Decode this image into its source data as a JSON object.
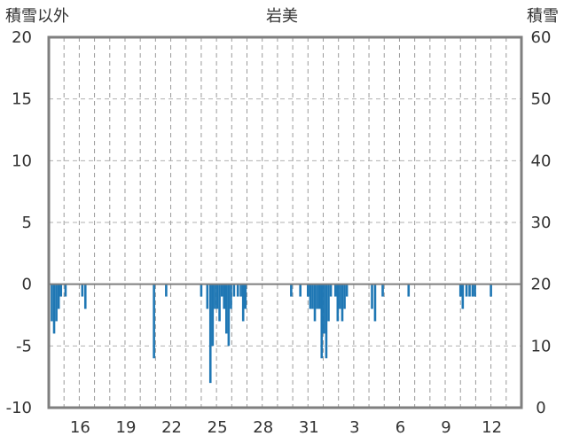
{
  "chart_data": {
    "type": "bar",
    "title": "岩美",
    "ylabel_left": "積雪以外",
    "ylabel_right": "積雪",
    "ylim_left": [
      -10,
      20
    ],
    "ylim_right": [
      0,
      60
    ],
    "yticks_left": [
      "20",
      "15",
      "10",
      "5",
      "0",
      "-5",
      "-10"
    ],
    "yticks_right": [
      "60",
      "50",
      "40",
      "30",
      "20",
      "10",
      "0"
    ],
    "xticks": [
      "16",
      "19",
      "22",
      "25",
      "28",
      "31",
      "3",
      "6",
      "9",
      "12"
    ],
    "x_range_days": [
      14,
      45
    ],
    "grid": "vertical dashed daily lines",
    "bar_color": "#1f77b4",
    "series": [
      {
        "values": [
          [
            14.2,
            -3
          ],
          [
            14.35,
            -4
          ],
          [
            14.5,
            -3
          ],
          [
            14.65,
            -2
          ],
          [
            14.8,
            -1
          ],
          [
            15.1,
            -1
          ],
          [
            16.2,
            -1
          ],
          [
            16.4,
            -2
          ],
          [
            20.9,
            -6
          ],
          [
            21.7,
            -1
          ],
          [
            24.0,
            -1
          ],
          [
            24.4,
            -2
          ],
          [
            24.6,
            -8
          ],
          [
            24.75,
            -5
          ],
          [
            24.9,
            -2
          ],
          [
            25.05,
            -2
          ],
          [
            25.2,
            -3
          ],
          [
            25.35,
            -1
          ],
          [
            25.5,
            -2
          ],
          [
            25.65,
            -4
          ],
          [
            25.8,
            -5
          ],
          [
            25.95,
            -2
          ],
          [
            26.15,
            -1
          ],
          [
            26.4,
            -1
          ],
          [
            26.6,
            -1
          ],
          [
            26.75,
            -3
          ],
          [
            26.9,
            -2
          ],
          [
            29.9,
            -1
          ],
          [
            30.5,
            -1
          ],
          [
            31.0,
            -1
          ],
          [
            31.15,
            -2
          ],
          [
            31.3,
            -2
          ],
          [
            31.45,
            -3
          ],
          [
            31.6,
            -2
          ],
          [
            31.75,
            -2
          ],
          [
            31.9,
            -6
          ],
          [
            32.05,
            -4
          ],
          [
            32.2,
            -6
          ],
          [
            32.35,
            -3
          ],
          [
            32.5,
            -1
          ],
          [
            32.8,
            -1
          ],
          [
            32.95,
            -3
          ],
          [
            33.1,
            -2
          ],
          [
            33.25,
            -3
          ],
          [
            33.4,
            -2
          ],
          [
            33.55,
            -1
          ],
          [
            35.2,
            -2
          ],
          [
            35.4,
            -3
          ],
          [
            35.9,
            -1
          ],
          [
            37.6,
            -1
          ],
          [
            41.0,
            -1
          ],
          [
            41.15,
            -2
          ],
          [
            41.4,
            -1
          ],
          [
            41.6,
            -1
          ],
          [
            41.8,
            -1
          ],
          [
            41.95,
            -1
          ],
          [
            43.0,
            -1
          ]
        ]
      }
    ]
  }
}
